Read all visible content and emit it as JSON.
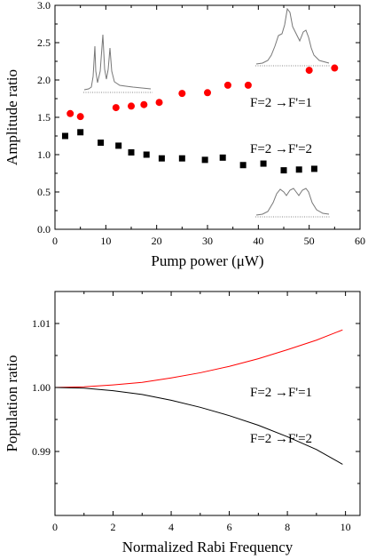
{
  "chart_data": [
    {
      "type": "scatter",
      "xlabel": "Pump power (μW)",
      "ylabel": "Amplitude ratio",
      "xlim": [
        0,
        60
      ],
      "ylim": [
        0.0,
        3.0
      ],
      "xticks": [
        "0",
        "10",
        "20",
        "30",
        "40",
        "50",
        "60"
      ],
      "yticks": [
        "0.0",
        "0.5",
        "1.0",
        "1.5",
        "2.0",
        "2.5",
        "3.0"
      ],
      "grid": false,
      "series": [
        {
          "name": "F=2 →F'=1",
          "marker": "circle",
          "color": "#ff0000",
          "x": [
            3,
            5,
            12,
            15,
            17.5,
            20.5,
            25,
            30,
            34,
            38,
            50,
            55
          ],
          "y": [
            1.55,
            1.51,
            1.63,
            1.65,
            1.67,
            1.7,
            1.82,
            1.83,
            1.93,
            1.93,
            2.13,
            2.16
          ]
        },
        {
          "name": "F=2 →F'=2",
          "marker": "square",
          "color": "#000000",
          "x": [
            2,
            5,
            9,
            12.5,
            15,
            18,
            21,
            25,
            29.5,
            33,
            37,
            41,
            45,
            48,
            51
          ],
          "y": [
            1.25,
            1.3,
            1.16,
            1.12,
            1.03,
            1.0,
            0.95,
            0.95,
            0.93,
            0.96,
            0.86,
            0.88,
            0.79,
            0.8,
            0.81
          ]
        }
      ],
      "annotations": [
        "F=2 →F'=1",
        "F=2 →F'=2"
      ]
    },
    {
      "type": "line",
      "xlabel": "Normalized Rabi Frequency",
      "ylabel": "Population ratio",
      "xlim": [
        0,
        10.5
      ],
      "ylim": [
        0.98,
        1.015
      ],
      "xticks": [
        "0",
        "2",
        "4",
        "6",
        "8",
        "10"
      ],
      "yticks": [
        "0.99",
        "1.00",
        "1.01"
      ],
      "grid": false,
      "series": [
        {
          "name": "F=2 →F'=1",
          "color": "#ff0000",
          "x": [
            0,
            1,
            2,
            3,
            4,
            5,
            6,
            7,
            8,
            9,
            9.9
          ],
          "y": [
            1.0,
            1.0001,
            1.0004,
            1.0008,
            1.0015,
            1.0023,
            1.0033,
            1.0045,
            1.0059,
            1.0074,
            1.009
          ]
        },
        {
          "name": "F=2 →F'=2",
          "color": "#000000",
          "x": [
            0,
            1,
            2,
            3,
            4,
            5,
            6,
            7,
            8,
            9,
            9.9
          ],
          "y": [
            1.0,
            0.9999,
            0.9995,
            0.9989,
            0.998,
            0.9969,
            0.9956,
            0.9941,
            0.9923,
            0.9903,
            0.988
          ]
        }
      ],
      "annotations": [
        "F=2 →F'=1",
        "F=2 →F'=2"
      ]
    }
  ]
}
